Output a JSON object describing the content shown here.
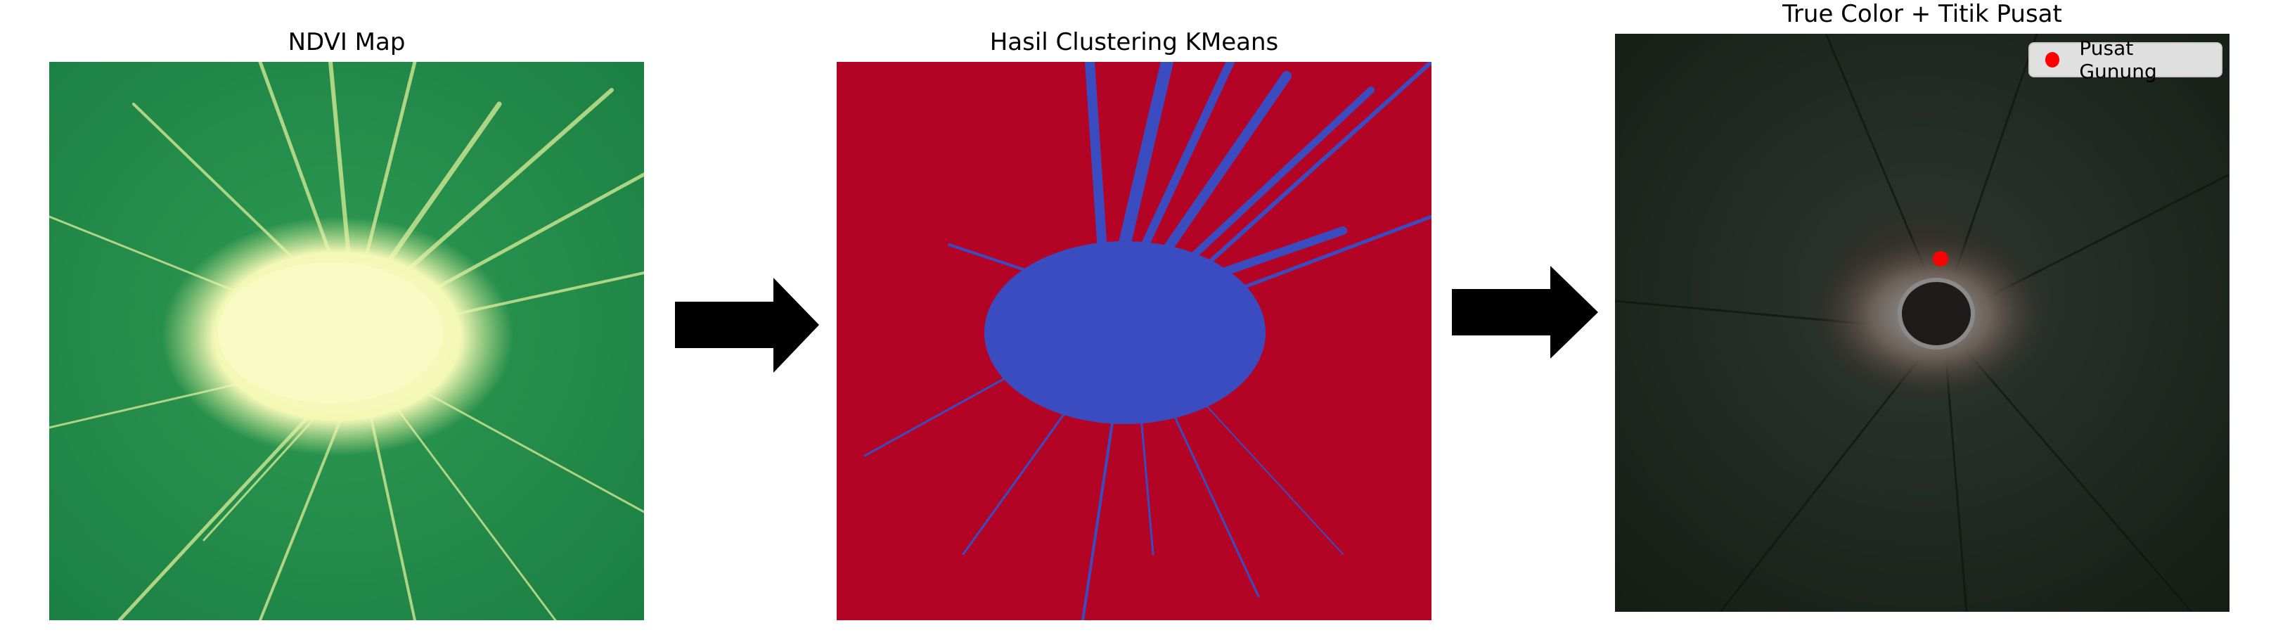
{
  "figure": {
    "panels": [
      {
        "title": "NDVI Map"
      },
      {
        "title": "Hasil Clustering KMeans"
      },
      {
        "title": "True Color + Titik Pusat"
      }
    ],
    "legend": {
      "label": "Pusat Gunung",
      "marker_color": "#ff0000"
    },
    "arrows": [
      {
        "from": "NDVI Map",
        "to": "Hasil Clustering KMeans"
      },
      {
        "from": "Hasil Clustering KMeans",
        "to": "True Color + Titik Pusat"
      }
    ]
  },
  "colors": {
    "ndvi_low": "#f4f8be",
    "ndvi_high": "#1a8a4a",
    "cluster_background": "#b40426",
    "cluster_blue": "#3b4cc0",
    "truecolor_dark": "#1a2418",
    "center_point": "#ff0000"
  }
}
